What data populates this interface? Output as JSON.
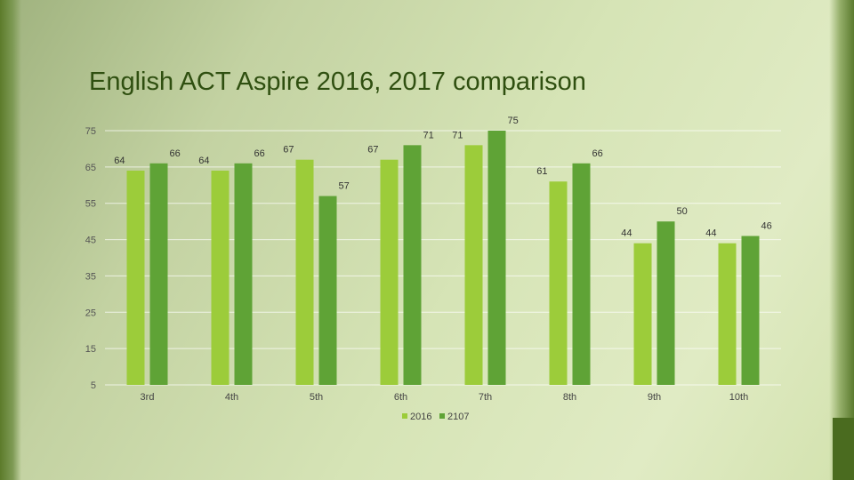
{
  "slide": {
    "title": "English ACT Aspire 2016, 2017 comparison"
  },
  "colors": {
    "series_2016": "#9ccc3a",
    "series_2107": "#5fa336",
    "gridline": "#ffffff",
    "title": "#2f4f10"
  },
  "chart_data": {
    "type": "bar",
    "title": "",
    "xlabel": "",
    "ylabel": "",
    "categories": [
      "3rd",
      "4th",
      "5th",
      "6th",
      "7th",
      "8th",
      "9th",
      "10th"
    ],
    "series": [
      {
        "name": "2016",
        "values": [
          64,
          64,
          67,
          67,
          71,
          61,
          44,
          44
        ]
      },
      {
        "name": "2107",
        "values": [
          66,
          66,
          57,
          71,
          75,
          66,
          50,
          46
        ]
      }
    ],
    "yticks": [
      5,
      15,
      25,
      35,
      45,
      55,
      65,
      75
    ],
    "ylim": [
      5,
      75
    ],
    "grid": true,
    "legend": "bottom"
  }
}
